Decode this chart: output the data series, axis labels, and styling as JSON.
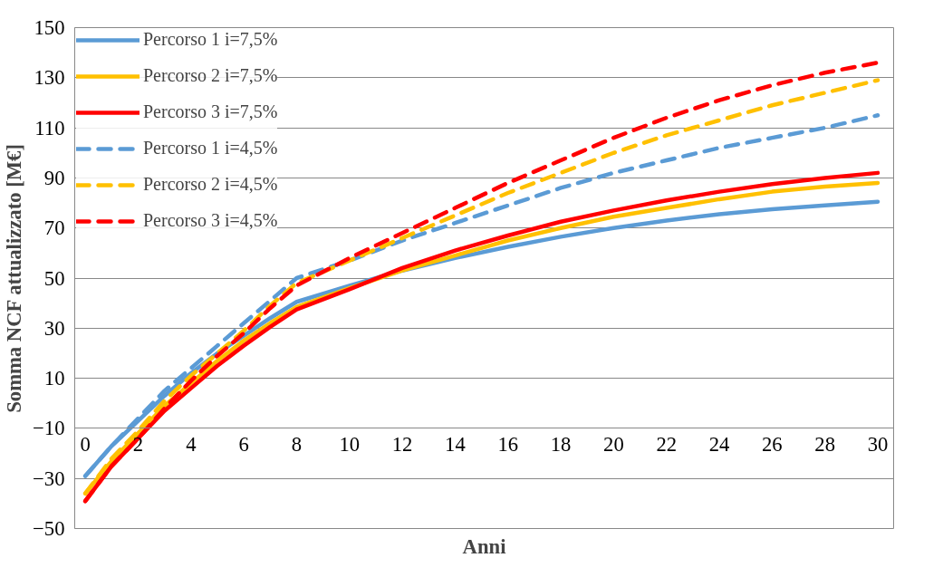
{
  "chart_data": {
    "type": "line",
    "xlabel": "Anni",
    "ylabel": "Somma NCF attualizzato [M€]",
    "x": [
      0,
      1,
      2,
      3,
      4,
      5,
      6,
      7,
      8,
      10,
      12,
      14,
      16,
      18,
      20,
      22,
      24,
      26,
      28,
      30
    ],
    "xlim": [
      -0.4,
      30.6
    ],
    "xticks": [
      0,
      2,
      4,
      6,
      8,
      10,
      12,
      14,
      16,
      18,
      20,
      22,
      24,
      26,
      28,
      30
    ],
    "ylim": [
      -50,
      150
    ],
    "yticks": [
      -50,
      -30,
      -10,
      10,
      30,
      50,
      70,
      90,
      110,
      130,
      150
    ],
    "grid": "y",
    "legend": "top left",
    "marker": "none",
    "series": [
      {
        "name": "Percorso 1 i=7,5%",
        "color": "#5b9bd5",
        "line_style": "solid",
        "values": [
          -29,
          -17,
          -7,
          3,
          12,
          20,
          27,
          34,
          40.5,
          47,
          53,
          58,
          62.5,
          66.5,
          70,
          73,
          75.5,
          77.5,
          79,
          80.5
        ]
      },
      {
        "name": "Percorso 2 i=7,5%",
        "color": "#ffc000",
        "line_style": "solid",
        "values": [
          -36,
          -23,
          -12,
          -1,
          8,
          17,
          25,
          32,
          38.5,
          46,
          53,
          59,
          65,
          70,
          74.5,
          78,
          81.5,
          84.5,
          86.5,
          88
        ]
      },
      {
        "name": "Percorso 3 i=7,5%",
        "color": "#ff0000",
        "line_style": "solid",
        "values": [
          -39,
          -25,
          -14,
          -3,
          6,
          15,
          23,
          30.5,
          37.5,
          45.5,
          54,
          61,
          67,
          72.5,
          77,
          81,
          84.5,
          87.5,
          90,
          92
        ]
      },
      {
        "name": "Percorso 1 i=4,5%",
        "color": "#5b9bd5",
        "line_style": "dashed",
        "values": [
          -29,
          -17,
          -6,
          5,
          14,
          23,
          32,
          41,
          50,
          57,
          65,
          72,
          79,
          86,
          92,
          97,
          102,
          106,
          110,
          115
        ]
      },
      {
        "name": "Percorso 2 i=4,5%",
        "color": "#ffc000",
        "line_style": "dashed",
        "values": [
          -36,
          -22,
          -11,
          1,
          11,
          20,
          29,
          39,
          48,
          57,
          66,
          75,
          84,
          92,
          100,
          107,
          113,
          119,
          124,
          129
        ]
      },
      {
        "name": "Percorso 3 i=4,5%",
        "color": "#ff0000",
        "line_style": "dashed",
        "values": [
          -39,
          -25,
          -14,
          -2,
          9,
          19,
          28,
          38,
          47,
          58,
          68,
          78,
          88,
          97,
          106,
          114,
          121,
          127,
          132,
          136
        ]
      }
    ]
  }
}
